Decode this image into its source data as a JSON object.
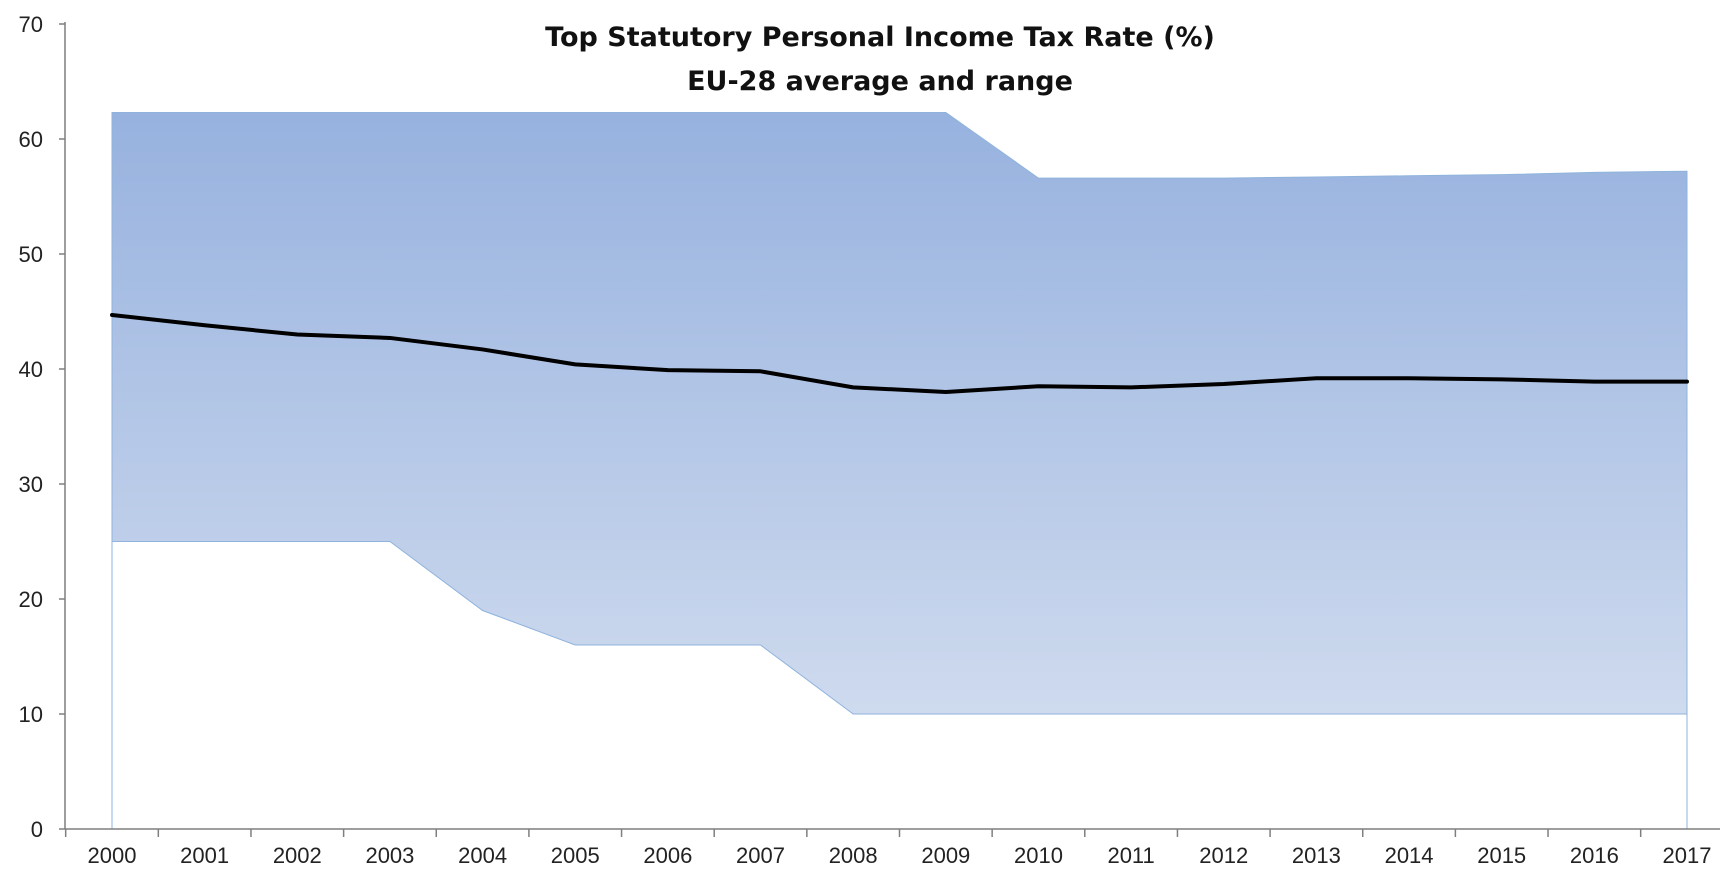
{
  "chart_data": {
    "type": "area",
    "title": "Top Statutory Personal Income Tax Rate (%)",
    "subtitle": "EU-28 average and range",
    "xlabel": "",
    "ylabel": "",
    "x": [
      "2000",
      "2001",
      "2002",
      "2003",
      "2004",
      "2005",
      "2006",
      "2007",
      "2008",
      "2009",
      "2010",
      "2011",
      "2012",
      "2013",
      "2014",
      "2015",
      "2016",
      "2017"
    ],
    "ylim": [
      0,
      70
    ],
    "yticks": [
      "0",
      "10",
      "20",
      "30",
      "40",
      "50",
      "60",
      "70"
    ],
    "grid": false,
    "series": [
      {
        "role": "range_max",
        "values": [
          62.3,
          62.3,
          62.3,
          62.3,
          62.3,
          62.3,
          62.3,
          62.3,
          62.3,
          62.3,
          56.6,
          56.6,
          56.6,
          56.7,
          56.8,
          56.9,
          57.1,
          57.2
        ]
      },
      {
        "role": "range_min",
        "values": [
          25,
          25,
          25,
          25,
          19,
          16,
          16,
          16,
          10,
          10,
          10,
          10,
          10,
          10,
          10,
          10,
          10,
          10
        ]
      },
      {
        "role": "average",
        "values": [
          44.7,
          43.8,
          43.0,
          42.7,
          41.7,
          40.4,
          39.9,
          39.8,
          38.4,
          38.0,
          38.5,
          38.4,
          38.7,
          39.2,
          39.2,
          39.1,
          38.9,
          38.9
        ]
      }
    ],
    "colors": {
      "range_top": "#97b2df",
      "range_bottom": "#d9e2f1",
      "range_edge": "#8fb3dc",
      "average_line": "#000000",
      "axis": "#7f7f7f"
    }
  }
}
